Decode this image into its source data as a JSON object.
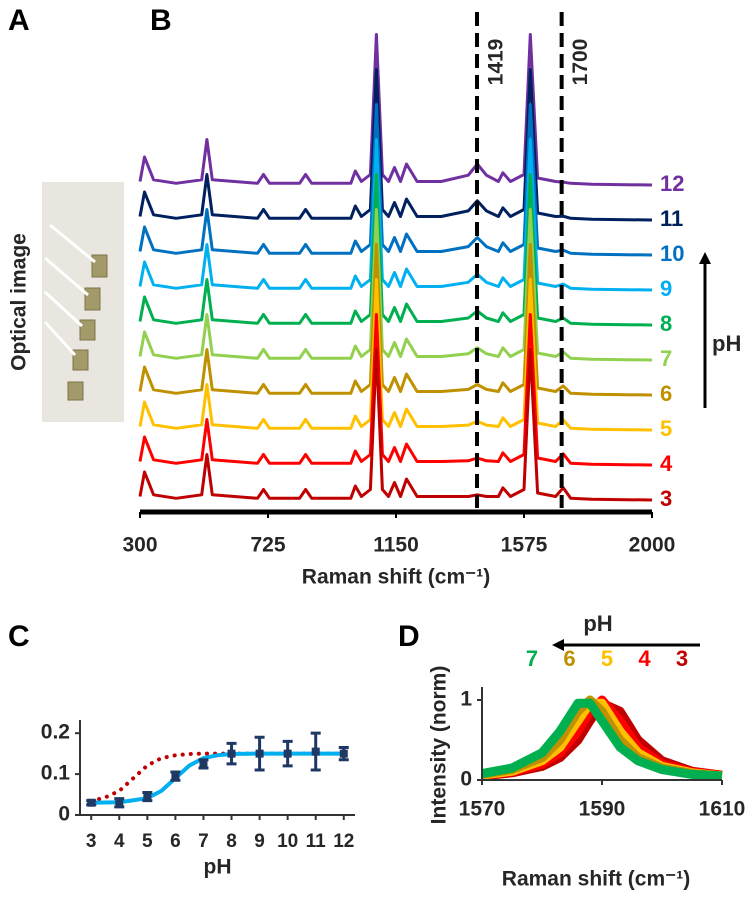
{
  "figure": {
    "panel_labels": [
      "A",
      "B",
      "C",
      "D"
    ],
    "image_label": "Optical image"
  },
  "chart_data": [
    {
      "type": "waterfall",
      "xlabel": "Raman shift (cm⁻¹)",
      "xlim": [
        300,
        2000
      ],
      "xticks": [
        300,
        725,
        1150,
        1575,
        2000
      ],
      "markers": [
        1419,
        1700
      ],
      "legend_title": "pH",
      "x": [
        300,
        315,
        345,
        420,
        505,
        522,
        540,
        690,
        710,
        730,
        830,
        850,
        870,
        1000,
        1015,
        1035,
        1065,
        1085,
        1105,
        1125,
        1145,
        1165,
        1185,
        1220,
        1300,
        1390,
        1420,
        1450,
        1490,
        1505,
        1530,
        1575,
        1596,
        1620,
        1680,
        1705,
        1730,
        1800,
        2000
      ],
      "series": [
        {
          "name": "3",
          "color": "#c00000",
          "values": [
            0.1,
            0.8,
            0.15,
            0.05,
            0.15,
            1.3,
            0.15,
            0.05,
            0.3,
            0.05,
            0.05,
            0.3,
            0.05,
            0.05,
            0.4,
            0.1,
            0.3,
            4.3,
            0.3,
            0.1,
            0.5,
            0.1,
            0.6,
            0.1,
            0.1,
            0.1,
            0.15,
            0.1,
            0.1,
            0.35,
            0.1,
            0.3,
            4.3,
            0.2,
            0.1,
            0.35,
            0.05,
            0.02,
            0
          ]
        },
        {
          "name": "4",
          "color": "#ff0000",
          "values": [
            0.1,
            0.8,
            0.15,
            0.05,
            0.15,
            1.3,
            0.15,
            0.05,
            0.3,
            0.05,
            0.05,
            0.3,
            0.05,
            0.05,
            0.4,
            0.1,
            0.3,
            4.3,
            0.3,
            0.1,
            0.5,
            0.1,
            0.6,
            0.1,
            0.1,
            0.12,
            0.2,
            0.12,
            0.1,
            0.35,
            0.1,
            0.3,
            4.3,
            0.2,
            0.1,
            0.32,
            0.05,
            0.02,
            0
          ]
        },
        {
          "name": "5",
          "color": "#ffc000",
          "values": [
            0.1,
            0.8,
            0.15,
            0.05,
            0.15,
            1.3,
            0.15,
            0.05,
            0.3,
            0.05,
            0.05,
            0.3,
            0.05,
            0.05,
            0.4,
            0.1,
            0.3,
            4.3,
            0.3,
            0.1,
            0.5,
            0.1,
            0.6,
            0.1,
            0.1,
            0.14,
            0.25,
            0.14,
            0.1,
            0.35,
            0.1,
            0.3,
            4.3,
            0.2,
            0.1,
            0.29,
            0.05,
            0.02,
            0
          ]
        },
        {
          "name": "6",
          "color": "#bf9000",
          "values": [
            0.1,
            0.8,
            0.15,
            0.05,
            0.15,
            1.3,
            0.15,
            0.05,
            0.3,
            0.05,
            0.05,
            0.3,
            0.05,
            0.05,
            0.4,
            0.1,
            0.3,
            4.3,
            0.3,
            0.1,
            0.5,
            0.1,
            0.6,
            0.1,
            0.1,
            0.16,
            0.3,
            0.16,
            0.1,
            0.35,
            0.1,
            0.3,
            4.3,
            0.2,
            0.1,
            0.26,
            0.05,
            0.02,
            0
          ]
        },
        {
          "name": "7",
          "color": "#92d050",
          "values": [
            0.1,
            0.8,
            0.15,
            0.05,
            0.15,
            1.3,
            0.15,
            0.05,
            0.3,
            0.05,
            0.05,
            0.3,
            0.05,
            0.05,
            0.4,
            0.1,
            0.3,
            4.3,
            0.3,
            0.1,
            0.5,
            0.1,
            0.6,
            0.1,
            0.1,
            0.18,
            0.35,
            0.18,
            0.1,
            0.35,
            0.1,
            0.3,
            4.3,
            0.2,
            0.1,
            0.23,
            0.05,
            0.02,
            0
          ]
        },
        {
          "name": "8",
          "color": "#00b050",
          "values": [
            0.1,
            0.8,
            0.15,
            0.05,
            0.15,
            1.3,
            0.15,
            0.05,
            0.3,
            0.05,
            0.05,
            0.3,
            0.05,
            0.05,
            0.4,
            0.1,
            0.3,
            4.3,
            0.3,
            0.1,
            0.5,
            0.1,
            0.6,
            0.1,
            0.1,
            0.2,
            0.4,
            0.2,
            0.1,
            0.35,
            0.1,
            0.3,
            4.3,
            0.2,
            0.1,
            0.2,
            0.05,
            0.02,
            0
          ]
        },
        {
          "name": "9",
          "color": "#00b0f0",
          "values": [
            0.1,
            0.8,
            0.15,
            0.05,
            0.15,
            1.3,
            0.15,
            0.05,
            0.3,
            0.05,
            0.05,
            0.3,
            0.05,
            0.05,
            0.4,
            0.1,
            0.3,
            4.3,
            0.3,
            0.1,
            0.5,
            0.1,
            0.6,
            0.1,
            0.1,
            0.22,
            0.45,
            0.22,
            0.1,
            0.35,
            0.1,
            0.3,
            4.3,
            0.2,
            0.1,
            0.17,
            0.05,
            0.02,
            0
          ]
        },
        {
          "name": "10",
          "color": "#0070c0",
          "values": [
            0.1,
            0.8,
            0.15,
            0.05,
            0.15,
            1.3,
            0.15,
            0.05,
            0.3,
            0.05,
            0.05,
            0.3,
            0.05,
            0.05,
            0.4,
            0.1,
            0.3,
            4.3,
            0.3,
            0.1,
            0.5,
            0.1,
            0.6,
            0.1,
            0.1,
            0.24,
            0.5,
            0.24,
            0.1,
            0.35,
            0.1,
            0.3,
            4.3,
            0.2,
            0.1,
            0.14,
            0.05,
            0.02,
            0
          ]
        },
        {
          "name": "11",
          "color": "#002060",
          "values": [
            0.1,
            0.8,
            0.15,
            0.05,
            0.15,
            1.3,
            0.15,
            0.05,
            0.3,
            0.05,
            0.05,
            0.3,
            0.05,
            0.05,
            0.4,
            0.1,
            0.3,
            4.3,
            0.3,
            0.1,
            0.5,
            0.1,
            0.6,
            0.1,
            0.1,
            0.26,
            0.55,
            0.26,
            0.1,
            0.35,
            0.1,
            0.3,
            4.3,
            0.2,
            0.1,
            0.11,
            0.05,
            0.02,
            0
          ]
        },
        {
          "name": "12",
          "color": "#7030a0",
          "values": [
            0.1,
            0.8,
            0.15,
            0.05,
            0.15,
            1.3,
            0.15,
            0.05,
            0.3,
            0.05,
            0.05,
            0.3,
            0.05,
            0.05,
            0.4,
            0.1,
            0.3,
            4.3,
            0.3,
            0.1,
            0.5,
            0.1,
            0.6,
            0.1,
            0.1,
            0.28,
            0.6,
            0.28,
            0.1,
            0.35,
            0.1,
            0.3,
            4.3,
            0.2,
            0.1,
            0.08,
            0.05,
            0.02,
            0
          ]
        }
      ]
    },
    {
      "type": "scatter",
      "xlabel": "pH",
      "xlim": [
        2.6,
        12.4
      ],
      "xticks": [
        3,
        4,
        5,
        6,
        7,
        8,
        9,
        10,
        11,
        12
      ],
      "ylim": [
        0,
        0.22
      ],
      "yticks": [
        0,
        0.1,
        0.2
      ],
      "series": [
        {
          "style": "dotted",
          "color": "#c00000",
          "x": [
            3,
            3.5,
            4,
            4.5,
            5,
            5.5,
            6,
            6.5,
            7,
            8,
            9,
            10,
            11,
            12
          ],
          "values": [
            0.034,
            0.043,
            0.059,
            0.09,
            0.121,
            0.139,
            0.146,
            0.149,
            0.15,
            0.15,
            0.15,
            0.15,
            0.15,
            0.15
          ]
        },
        {
          "style": "line",
          "color": "#00b0f0",
          "x": [
            3,
            4,
            5,
            5.5,
            6,
            6.5,
            7,
            7.5,
            8,
            9,
            10,
            11,
            12
          ],
          "values": [
            0.03,
            0.031,
            0.041,
            0.059,
            0.09,
            0.121,
            0.139,
            0.146,
            0.149,
            0.15,
            0.15,
            0.15,
            0.15
          ]
        },
        {
          "style": "points",
          "color": "#1f3864",
          "x": [
            3,
            4,
            5,
            6,
            7,
            8,
            9,
            10,
            11,
            12
          ],
          "values": [
            0.03,
            0.03,
            0.045,
            0.095,
            0.125,
            0.15,
            0.15,
            0.15,
            0.155,
            0.15
          ],
          "errors": [
            0.005,
            0.01,
            0.01,
            0.01,
            0.01,
            0.025,
            0.04,
            0.03,
            0.045,
            0.015
          ]
        }
      ]
    },
    {
      "type": "line",
      "xlabel": "Raman shift (cm⁻¹)",
      "ylabel": "Intensity (norm)",
      "legend_title": "pH",
      "xlim": [
        1570,
        1610
      ],
      "xticks": [
        1570,
        1590,
        1610
      ],
      "ylim": [
        0,
        1.1
      ],
      "yticks": [
        0,
        1
      ],
      "x": [
        1570,
        1575,
        1580,
        1583,
        1586,
        1588,
        1590,
        1593,
        1596,
        1600,
        1605,
        1610
      ],
      "series": [
        {
          "name": "7",
          "color": "#00b050",
          "values": [
            0.08,
            0.15,
            0.34,
            0.61,
            0.96,
            0.96,
            0.74,
            0.41,
            0.24,
            0.13,
            0.07,
            0.05
          ]
        },
        {
          "name": "6",
          "color": "#bf9000",
          "values": [
            0.07,
            0.13,
            0.28,
            0.5,
            0.86,
            1,
            0.86,
            0.5,
            0.28,
            0.15,
            0.08,
            0.05
          ]
        },
        {
          "name": "5",
          "color": "#ffc000",
          "values": [
            0.06,
            0.11,
            0.24,
            0.41,
            0.74,
            0.96,
            0.96,
            0.61,
            0.34,
            0.17,
            0.09,
            0.05
          ]
        },
        {
          "name": "4",
          "color": "#ff0000",
          "values": [
            0.06,
            0.1,
            0.2,
            0.34,
            0.61,
            0.86,
            1,
            0.74,
            0.41,
            0.2,
            0.1,
            0.06
          ]
        },
        {
          "name": "3",
          "color": "#c00000",
          "values": [
            0.05,
            0.09,
            0.17,
            0.28,
            0.5,
            0.74,
            0.96,
            0.86,
            0.5,
            0.24,
            0.11,
            0.06
          ]
        }
      ]
    }
  ]
}
